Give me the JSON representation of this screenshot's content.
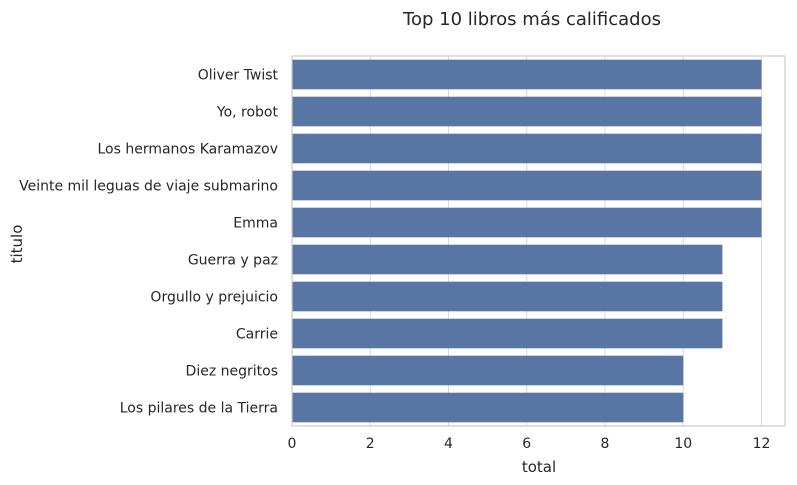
{
  "chart_data": {
    "type": "bar",
    "orientation": "horizontal",
    "title": "Top 10 libros más calificados",
    "xlabel": "total",
    "ylabel": "titulo",
    "categories": [
      "Oliver Twist",
      "Yo, robot",
      "Los hermanos Karamazov",
      "Veinte mil leguas de viaje submarino",
      "Emma",
      "Guerra y paz",
      "Orgullo y prejuicio",
      "Carrie",
      "Diez negritos",
      "Los pilares de la Tierra"
    ],
    "values": [
      12,
      12,
      12,
      12,
      12,
      11,
      11,
      11,
      10,
      10
    ],
    "xlim": [
      0,
      12.6
    ],
    "xticks": [
      "0",
      "2",
      "4",
      "6",
      "8",
      "10",
      "12"
    ],
    "grid": true,
    "colors": {
      "bar": "#5975a4",
      "grid": "#d9d9d9",
      "spine": "#cccccc"
    }
  }
}
